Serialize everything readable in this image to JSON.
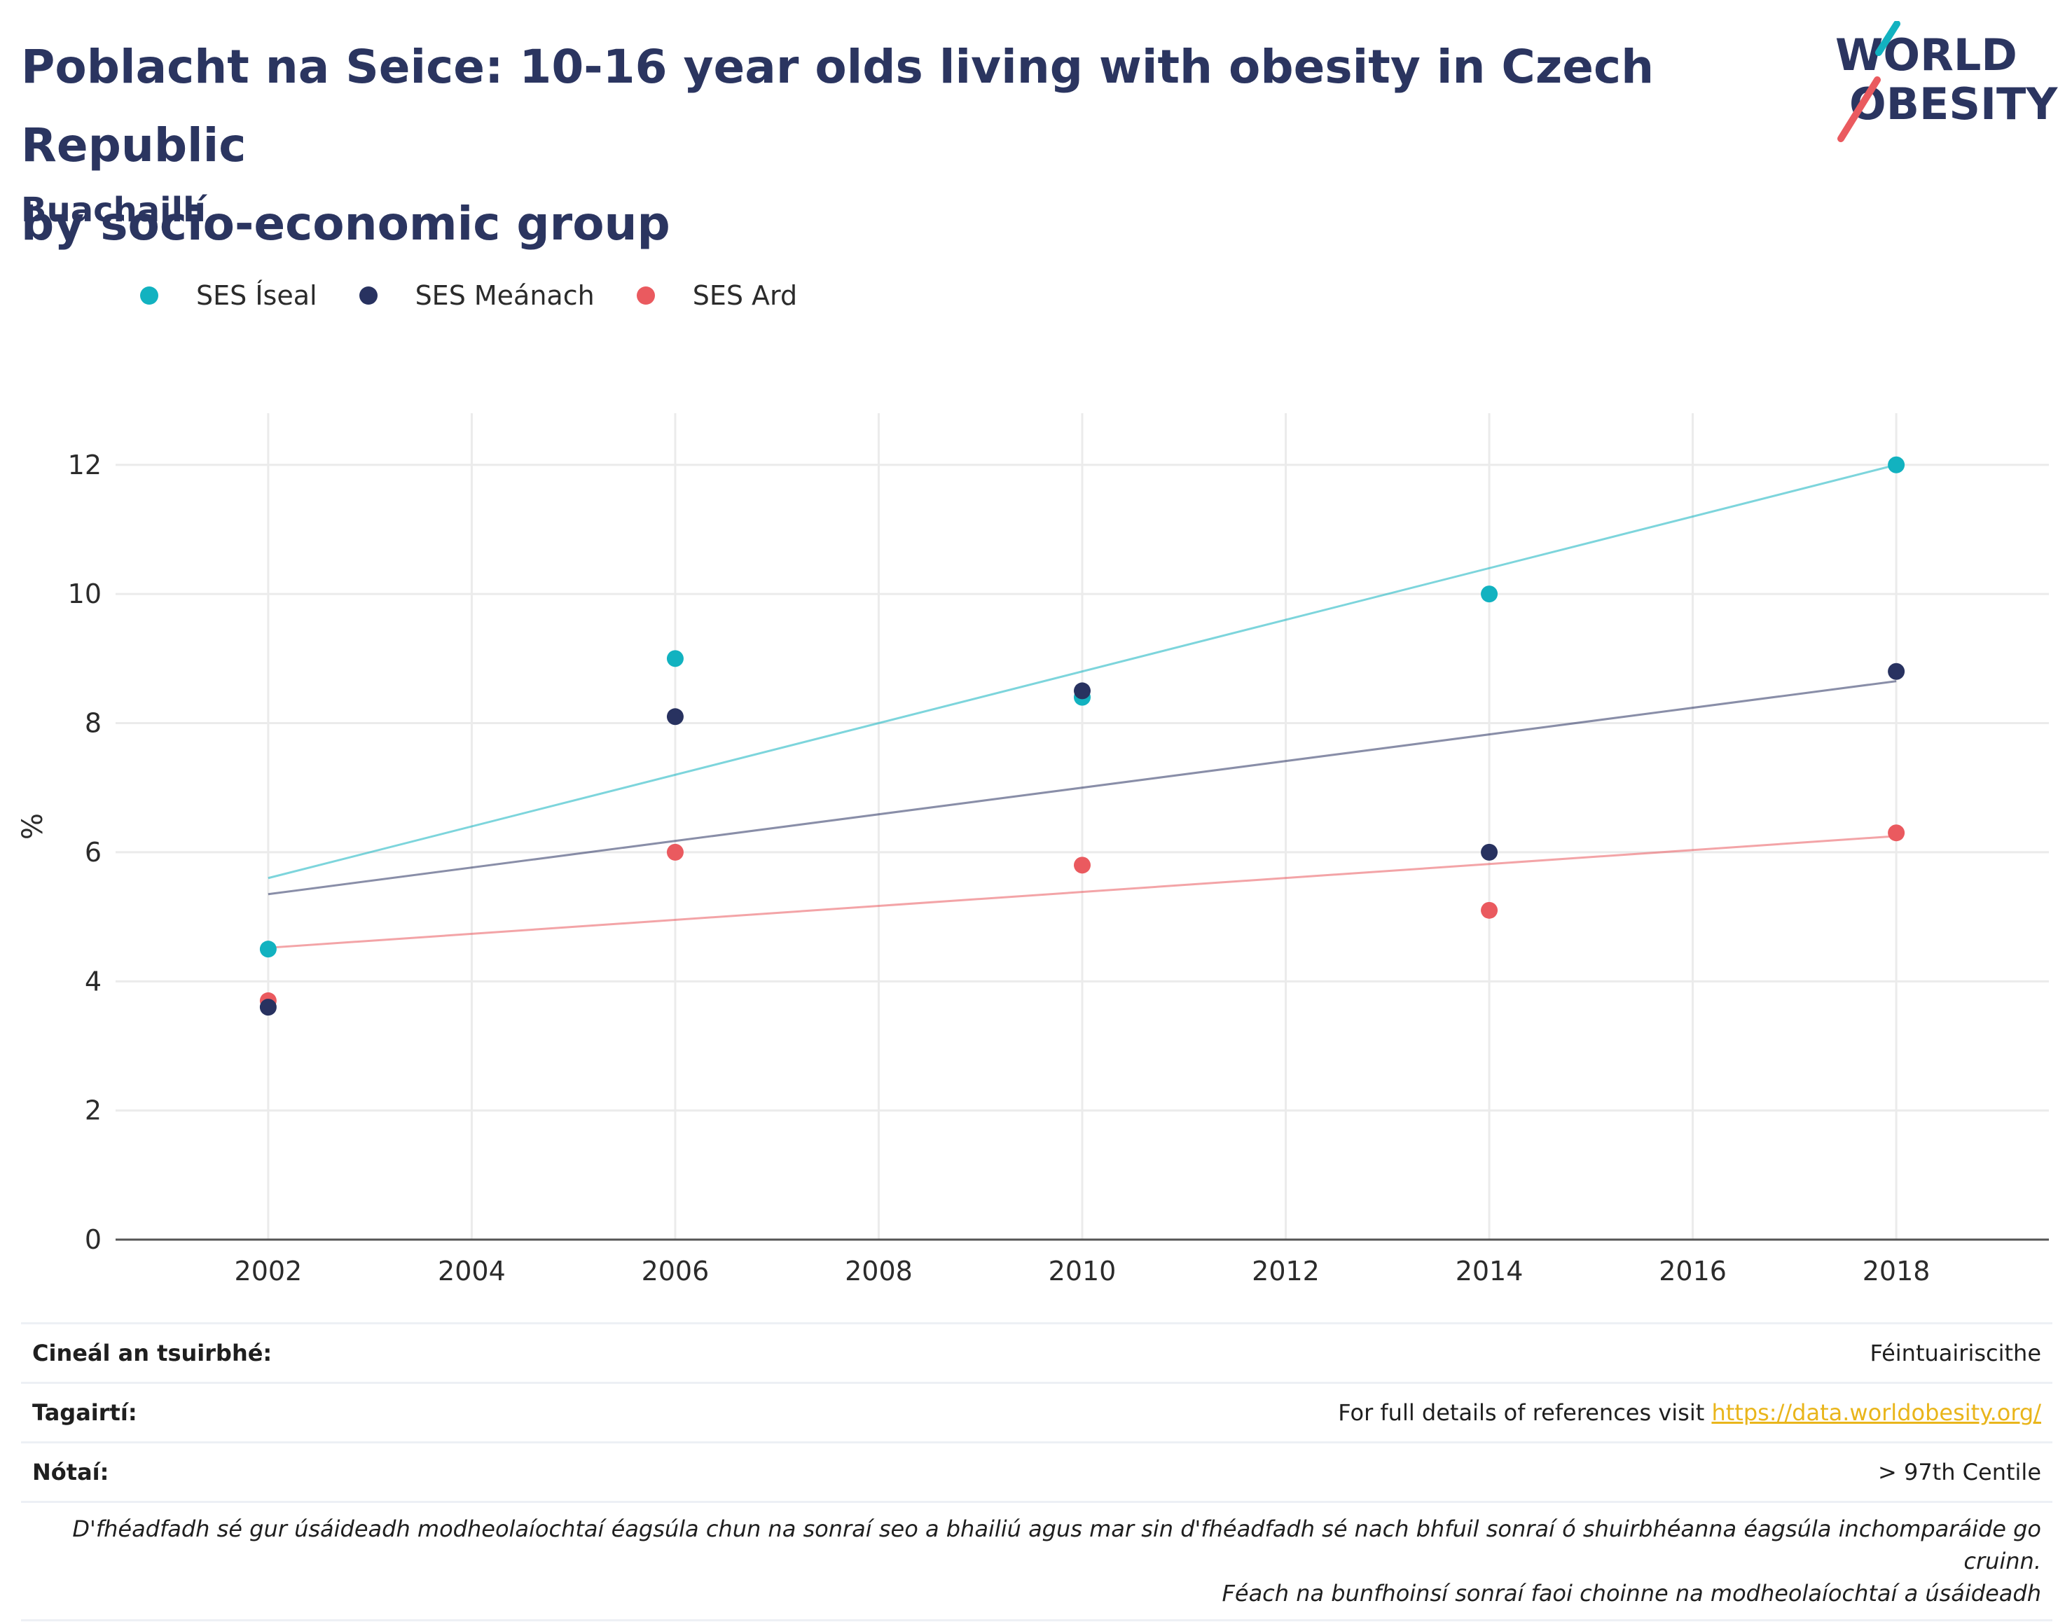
{
  "header": {
    "title_line1": "Poblacht na Seice: 10-16 year olds living with obesity in Czech Republic",
    "title_line2": "by socio-economic group",
    "subtitle": "Buachaillí",
    "logo_line1": "WORLD",
    "logo_line2": "OBESITY"
  },
  "colors": {
    "low": "#12b2c0",
    "mid": "#283260",
    "high": "#ea5a5f",
    "text": "#2b3560",
    "link": "#e9b51b"
  },
  "chart_data": {
    "type": "scatter",
    "ylabel": "%",
    "xlabel": "",
    "xlim": [
      2000.5,
      2019.5
    ],
    "ylim": [
      0,
      12.8
    ],
    "x_ticks": [
      2002,
      2004,
      2006,
      2008,
      2010,
      2012,
      2014,
      2016,
      2018
    ],
    "y_ticks": [
      0,
      2,
      4,
      6,
      8,
      10,
      12
    ],
    "grid": true,
    "legend_position": "top-left",
    "x": [
      2002,
      2006,
      2010,
      2014,
      2018
    ],
    "series": [
      {
        "name": "SES Íseal",
        "color": "#12b2c0",
        "values": [
          4.5,
          9.0,
          8.4,
          10.0,
          12.0
        ],
        "trend": [
          5.6,
          12.0
        ]
      },
      {
        "name": "SES Meánach",
        "color": "#283260",
        "values": [
          3.6,
          8.1,
          8.5,
          6.0,
          8.8
        ],
        "trend": [
          5.35,
          8.65
        ]
      },
      {
        "name": "SES Ard",
        "color": "#ea5a5f",
        "values": [
          3.7,
          6.0,
          5.8,
          5.1,
          6.3
        ],
        "trend": [
          4.52,
          6.25
        ]
      }
    ]
  },
  "footer": {
    "survey_label": "Cineál an tsuirbhé:",
    "survey_value": "Féintuairiscithe",
    "refs_label": "Tagairtí:",
    "refs_text": "For full details of references visit ",
    "refs_link": "https://data.worldobesity.org/",
    "notes_label": "Nótaí:",
    "notes_value": "> 97th Centile",
    "disclaimer_line1": "D'fhéadfadh sé gur úsáideadh modheolaíochtaí éagsúla chun na sonraí seo a bhailiú agus mar sin d'fhéadfadh sé nach bhfuil sonraí ó shuirbhéanna éagsúla inchomparáide go cruinn.",
    "disclaimer_line2": "Féach na bunfhoinsí sonraí faoi choinne na modheolaíochtaí a úsáideadh"
  }
}
